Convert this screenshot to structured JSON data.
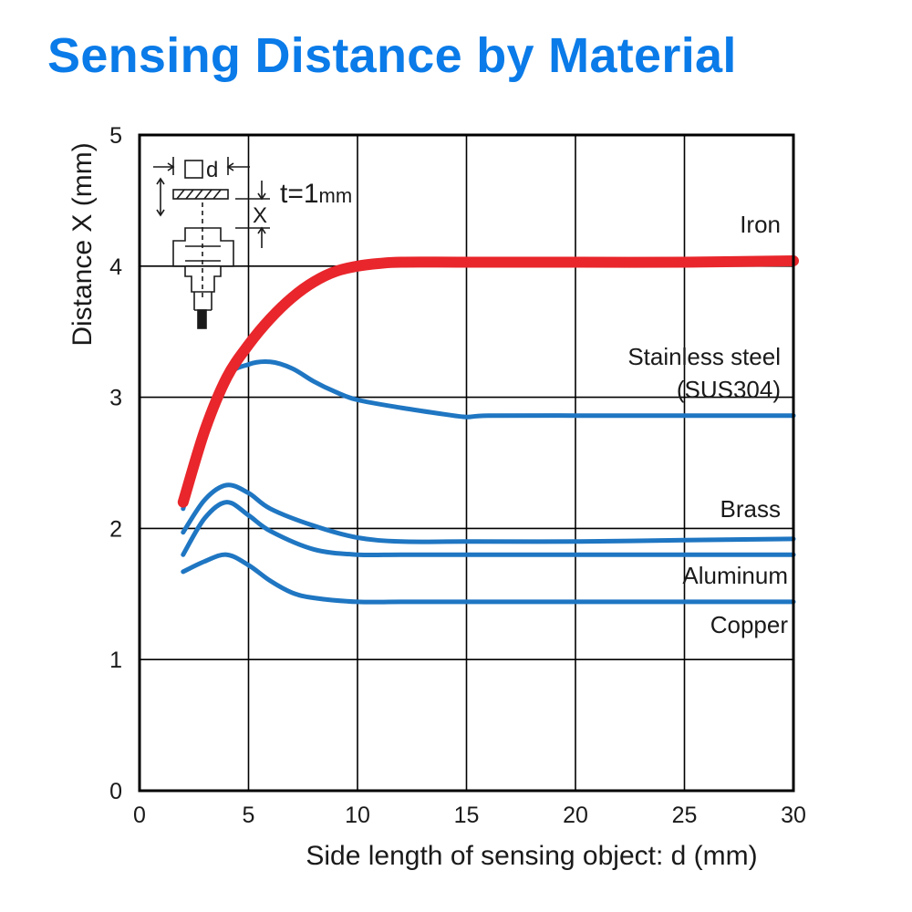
{
  "title": "Sensing Distance by Material",
  "colors": {
    "title": "#0a7be8",
    "iron": "#e8262b",
    "others": "#1f76c2",
    "grid": "#000000"
  },
  "inset": {
    "square_label": "d",
    "thickness_label": "t=1",
    "thickness_unit": "mm",
    "distance_label": "X"
  },
  "chart_data": {
    "type": "line",
    "title": "",
    "xlabel": "Side length of sensing object: d (mm)",
    "ylabel": "Distance X (mm)",
    "xlim": [
      0,
      30
    ],
    "ylim": [
      0,
      5
    ],
    "xticks": [
      0,
      5,
      10,
      15,
      20,
      25,
      30
    ],
    "yticks": [
      0,
      1,
      2,
      3,
      4,
      5
    ],
    "grid": true,
    "series": [
      {
        "name": "Iron",
        "color": "#e8262b",
        "x": [
          2,
          3,
          4,
          5,
          6,
          7,
          8,
          9,
          10,
          11,
          12,
          15,
          20,
          25,
          30
        ],
        "y": [
          2.2,
          2.75,
          3.15,
          3.4,
          3.6,
          3.76,
          3.88,
          3.96,
          4.0,
          4.02,
          4.03,
          4.03,
          4.03,
          4.03,
          4.04
        ]
      },
      {
        "name": "Stainless steel\n(SUS304)",
        "color": "#1f76c2",
        "x": [
          2,
          3,
          4,
          5,
          6,
          7,
          8,
          9,
          10,
          12,
          14,
          15,
          16,
          20,
          25,
          30
        ],
        "y": [
          2.15,
          2.75,
          3.15,
          3.25,
          3.27,
          3.22,
          3.12,
          3.04,
          2.98,
          2.92,
          2.87,
          2.85,
          2.86,
          2.86,
          2.86,
          2.86
        ]
      },
      {
        "name": "Brass",
        "color": "#1f76c2",
        "x": [
          2,
          3,
          4,
          5,
          6,
          8,
          10,
          12,
          15,
          20,
          25,
          30
        ],
        "y": [
          1.97,
          2.22,
          2.33,
          2.27,
          2.15,
          2.02,
          1.93,
          1.9,
          1.9,
          1.9,
          1.91,
          1.92
        ]
      },
      {
        "name": "Aluminum",
        "color": "#1f76c2",
        "x": [
          2,
          3,
          4,
          5,
          6,
          8,
          10,
          12,
          15,
          20,
          25,
          30
        ],
        "y": [
          1.8,
          2.08,
          2.2,
          2.1,
          1.98,
          1.84,
          1.8,
          1.8,
          1.8,
          1.8,
          1.8,
          1.8
        ]
      },
      {
        "name": "Copper",
        "color": "#1f76c2",
        "x": [
          2,
          3,
          4,
          5,
          6,
          7,
          8,
          10,
          12,
          15,
          20,
          25,
          30
        ],
        "y": [
          1.67,
          1.75,
          1.8,
          1.72,
          1.6,
          1.51,
          1.47,
          1.44,
          1.44,
          1.44,
          1.44,
          1.44,
          1.44
        ]
      }
    ]
  }
}
